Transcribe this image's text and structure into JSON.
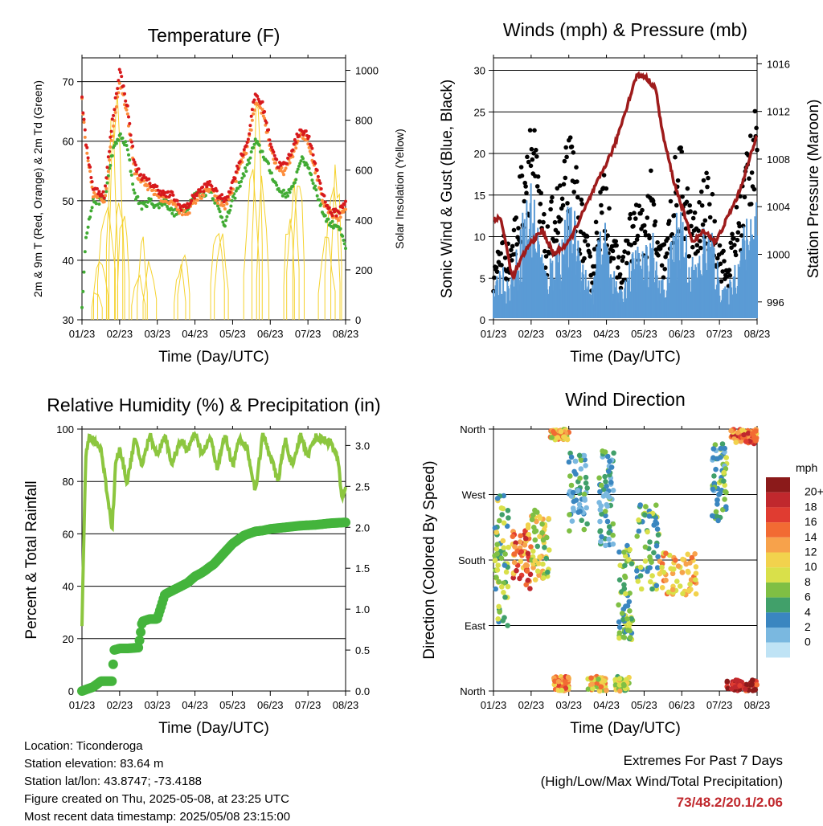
{
  "chart_data": [
    {
      "type": "line",
      "title": "Temperature (F)",
      "xlabel": "Time (Day/UTC)",
      "ylabel": "2m & 9m T (Red, Orange) & 2m Td (Green)",
      "ylabel_right": "Solar Insolation (Yellow)",
      "x_ticks": [
        "01/23",
        "02/23",
        "03/23",
        "04/23",
        "05/23",
        "06/23",
        "07/23",
        "08/23"
      ],
      "ylim": [
        30,
        74
      ],
      "y_ticks": [
        30,
        40,
        50,
        60,
        70
      ],
      "ylim_right": [
        0,
        1050
      ],
      "y_ticks_right": [
        0,
        200,
        400,
        600,
        800,
        1000
      ],
      "grid": "horizontal",
      "series": [
        {
          "name": "2m T",
          "color": "#d7191c",
          "x": [
            1,
            1.1,
            1.3,
            1.6,
            1.8,
            2.0,
            2.2,
            2.4,
            2.6,
            2.8,
            3.0,
            3.2,
            3.4,
            3.6,
            3.8,
            4.0,
            4.2,
            4.4,
            4.6,
            4.8,
            5.0,
            5.2,
            5.4,
            5.6,
            5.8,
            6.0,
            6.2,
            6.4,
            6.6,
            6.8,
            7.0,
            7.2,
            7.4,
            7.6,
            7.8,
            8.0
          ],
          "y": [
            67,
            60,
            52,
            51,
            63,
            72,
            66,
            56,
            54,
            53,
            52,
            51,
            51,
            49,
            49,
            51,
            52,
            53,
            51,
            50,
            53,
            57,
            60,
            68,
            66,
            60,
            56,
            56,
            59,
            62,
            61,
            56,
            51,
            48,
            48,
            50
          ]
        },
        {
          "name": "9m T",
          "color": "#fd8d3c",
          "x": [
            1,
            1.1,
            1.3,
            1.6,
            1.8,
            2.0,
            2.2,
            2.4,
            2.6,
            2.8,
            3.0,
            3.2,
            3.4,
            3.6,
            3.8,
            4.0,
            4.2,
            4.4,
            4.6,
            4.8,
            5.0,
            5.2,
            5.4,
            5.6,
            5.8,
            6.0,
            6.2,
            6.4,
            6.6,
            6.8,
            7.0,
            7.2,
            7.4,
            7.6,
            7.8,
            8.0
          ],
          "y": [
            67,
            59,
            51,
            50,
            61,
            70,
            65,
            55,
            53,
            52,
            51,
            50,
            50,
            48,
            48,
            50,
            51,
            52,
            50,
            49,
            52,
            56,
            59,
            66,
            65,
            59,
            55,
            55,
            58,
            61,
            60,
            55,
            50,
            48,
            47,
            49
          ]
        },
        {
          "name": "2m Td",
          "color": "#41ab34",
          "x": [
            1,
            1.05,
            1.1,
            1.3,
            1.6,
            1.8,
            2.0,
            2.2,
            2.4,
            2.6,
            2.8,
            3.0,
            3.2,
            3.4,
            3.6,
            3.8,
            4.0,
            4.2,
            4.4,
            4.6,
            4.8,
            5.0,
            5.2,
            5.4,
            5.6,
            5.8,
            6.0,
            6.2,
            6.4,
            6.6,
            6.8,
            7.0,
            7.2,
            7.4,
            7.6,
            7.8,
            8.0
          ],
          "y": [
            32,
            38,
            44,
            50,
            50,
            58,
            61,
            59,
            51,
            49,
            50,
            49,
            50,
            48,
            48,
            49,
            51,
            51,
            52,
            49,
            46,
            50,
            53,
            56,
            60,
            58,
            55,
            52,
            51,
            52,
            57,
            56,
            52,
            48,
            46,
            46,
            42
          ]
        },
        {
          "name": "Solar Insolation",
          "color": "#f5d22e",
          "axis": "right",
          "peaks": [
            [
              1.4,
              150
            ],
            [
              1.5,
              300
            ],
            [
              1.65,
              600
            ],
            [
              1.8,
              850
            ],
            [
              1.9,
              950
            ],
            [
              2.0,
              600
            ],
            [
              2.1,
              500
            ],
            [
              2.5,
              200
            ],
            [
              2.6,
              350
            ],
            [
              2.8,
              280
            ],
            [
              3.6,
              250
            ],
            [
              3.7,
              300
            ],
            [
              4.6,
              450
            ],
            [
              4.7,
              400
            ],
            [
              5.5,
              700
            ],
            [
              5.65,
              950
            ],
            [
              5.8,
              600
            ],
            [
              6.5,
              500
            ],
            [
              6.6,
              600
            ],
            [
              6.75,
              700
            ],
            [
              7.5,
              350
            ],
            [
              7.65,
              600
            ],
            [
              7.75,
              700
            ]
          ]
        }
      ]
    },
    {
      "type": "scatter",
      "title": "Winds (mph) & Pressure (mb)",
      "xlabel": "Time (Day/UTC)",
      "ylabel": "Sonic Wind & Gust (Blue, Black)",
      "ylabel_right": "Station Pressure (Maroon)",
      "x_ticks": [
        "01/23",
        "02/23",
        "03/23",
        "04/23",
        "05/23",
        "06/23",
        "07/23",
        "08/23"
      ],
      "ylim": [
        0,
        31.5
      ],
      "y_ticks": [
        0,
        5,
        10,
        15,
        20,
        25,
        30
      ],
      "ylim_right": [
        994.5,
        1016.5
      ],
      "y_ticks_right": [
        996,
        1000,
        1004,
        1008,
        1012,
        1016
      ],
      "grid": "horizontal",
      "series": [
        {
          "name": "Sonic Wind",
          "color": "#5b9bd5",
          "x": [
            1,
            1.2,
            1.4,
            1.6,
            1.8,
            2.0,
            2.2,
            2.4,
            2.6,
            2.8,
            3.0,
            3.2,
            3.4,
            3.6,
            3.8,
            4.0,
            4.2,
            4.4,
            4.6,
            4.8,
            5.0,
            5.2,
            5.4,
            5.6,
            5.8,
            6.0,
            6.2,
            6.4,
            6.6,
            6.8,
            7.0,
            7.2,
            7.4,
            7.6,
            7.8,
            8.0
          ],
          "y": [
            3,
            6,
            4,
            7,
            12,
            15,
            10,
            5,
            8,
            9,
            12,
            11,
            6,
            3,
            9,
            10,
            5,
            3,
            6,
            8,
            7,
            10,
            4,
            5,
            11,
            13,
            7,
            6,
            10,
            9,
            5,
            3,
            6,
            9,
            12,
            15
          ]
        },
        {
          "name": "Gust",
          "color": "#000000",
          "x": [
            1,
            1.2,
            1.4,
            1.6,
            1.8,
            2.0,
            2.2,
            2.4,
            2.6,
            2.8,
            3.0,
            3.2,
            3.4,
            3.6,
            3.8,
            4.0,
            4.2,
            4.4,
            4.6,
            4.8,
            5.0,
            5.2,
            5.4,
            5.6,
            5.8,
            6.0,
            6.2,
            6.4,
            6.6,
            6.8,
            7.0,
            7.2,
            7.4,
            7.6,
            7.8,
            8.0
          ],
          "y": [
            5,
            10,
            8,
            12,
            19,
            24,
            16,
            9,
            14,
            15,
            20,
            17,
            11,
            6,
            14,
            16,
            9,
            6,
            11,
            13,
            12,
            16,
            8,
            9,
            17,
            19,
            13,
            11,
            16,
            14,
            9,
            6,
            11,
            15,
            22,
            29
          ]
        },
        {
          "name": "Station Pressure",
          "color": "#9e1b1b",
          "axis": "right",
          "x": [
            1,
            1.2,
            1.5,
            1.8,
            2.0,
            2.3,
            2.6,
            3.0,
            3.3,
            3.6,
            3.9,
            4.2,
            4.5,
            4.8,
            5.0,
            5.3,
            5.5,
            5.8,
            6.0,
            6.3,
            6.6,
            6.9,
            7.2,
            7.5,
            7.8,
            8.0
          ],
          "y": [
            1003,
            1003,
            998,
            1000,
            1001,
            1002,
            1000,
            1001,
            1003,
            1005,
            1007,
            1009,
            1012,
            1015,
            1015,
            1014,
            1010,
            1006,
            1004,
            1001,
            1002,
            1001,
            1003,
            1005,
            1008,
            1010
          ]
        }
      ]
    },
    {
      "type": "line",
      "title": "Relative Humidity (%) & Precipitation (in)",
      "xlabel": "Time (Day/UTC)",
      "ylabel": "Percent & Total Rainfall",
      "x_ticks": [
        "01/23",
        "02/23",
        "03/23",
        "04/23",
        "05/23",
        "06/23",
        "07/23",
        "08/23"
      ],
      "ylim": [
        0,
        100
      ],
      "y_ticks": [
        0,
        20,
        40,
        60,
        80,
        100
      ],
      "ylim_right": [
        0.0,
        3.2
      ],
      "y_ticks_right": [
        0.0,
        0.5,
        1.0,
        1.5,
        2.0,
        2.5,
        3.0
      ],
      "grid": "horizontal",
      "series": [
        {
          "name": "Relative Humidity",
          "color": "#8cc63f",
          "x": [
            1,
            1.05,
            1.1,
            1.2,
            1.5,
            1.8,
            1.9,
            2.0,
            2.2,
            2.4,
            2.6,
            2.8,
            3.0,
            3.2,
            3.4,
            3.6,
            3.8,
            4.0,
            4.2,
            4.4,
            4.6,
            4.8,
            5.0,
            5.2,
            5.4,
            5.6,
            5.8,
            6.0,
            6.2,
            6.4,
            6.6,
            6.8,
            7.0,
            7.2,
            7.4,
            7.6,
            7.8,
            7.9,
            8.0
          ],
          "y": [
            26,
            60,
            90,
            97,
            93,
            62,
            88,
            92,
            80,
            96,
            86,
            98,
            90,
            98,
            86,
            96,
            92,
            98,
            90,
            97,
            85,
            98,
            86,
            97,
            92,
            76,
            98,
            90,
            80,
            96,
            85,
            98,
            90,
            97,
            96,
            95,
            88,
            74,
            78
          ]
        },
        {
          "name": "Total Precipitation",
          "color": "#44b43c",
          "axis": "right",
          "x": [
            1,
            1.3,
            1.5,
            1.8,
            1.85,
            2.0,
            2.2,
            2.5,
            2.6,
            2.8,
            3.0,
            3.2,
            3.5,
            3.8,
            4.0,
            4.2,
            4.5,
            4.8,
            5.0,
            5.3,
            5.6,
            5.8,
            6.0,
            6.4,
            6.8,
            7.2,
            7.6,
            8.0
          ],
          "y": [
            0.0,
            0.05,
            0.12,
            0.12,
            0.5,
            0.52,
            0.52,
            0.53,
            0.85,
            0.88,
            0.88,
            1.18,
            1.25,
            1.32,
            1.4,
            1.45,
            1.55,
            1.7,
            1.8,
            1.9,
            1.95,
            1.96,
            1.98,
            2.0,
            2.02,
            2.03,
            2.05,
            2.06
          ]
        }
      ]
    },
    {
      "type": "scatter",
      "title": "Wind Direction",
      "xlabel": "Time (Day/UTC)",
      "ylabel": "Direction (Colored By Speed)",
      "x_ticks": [
        "01/23",
        "02/23",
        "03/23",
        "04/23",
        "05/23",
        "06/23",
        "07/23",
        "08/23"
      ],
      "y_ticks": [
        "North",
        "East",
        "South",
        "West",
        "North"
      ],
      "ylim": [
        0,
        360
      ],
      "legend": {
        "title": "mph",
        "placement": "right",
        "levels": [
          "20+",
          "18",
          "16",
          "14",
          "12",
          "10",
          "8",
          "6",
          "4",
          "2",
          "0"
        ],
        "colors": [
          "#8b1a1a",
          "#c0282d",
          "#e03c31",
          "#f26b33",
          "#f7a24b",
          "#f2d24d",
          "#d9e04a",
          "#7fbf44",
          "#41a06a",
          "#3a86c0",
          "#7ab8e0",
          "#bfe3f5"
        ]
      },
      "clusters": [
        {
          "x": [
            1.0,
            1.4
          ],
          "dir": [
            90,
            270
          ],
          "speed": 6
        },
        {
          "x": [
            1.5,
            2.0
          ],
          "dir": [
            140,
            230
          ],
          "speed": 14
        },
        {
          "x": [
            2.0,
            2.5
          ],
          "dir": [
            150,
            250
          ],
          "speed": 8
        },
        {
          "x": [
            2.6,
            3.0
          ],
          "dir": [
            0,
            20
          ],
          "speed": 12
        },
        {
          "x": [
            2.5,
            3.0
          ],
          "dir": [
            345,
            360
          ],
          "speed": 10
        },
        {
          "x": [
            3.0,
            3.5
          ],
          "dir": [
            220,
            330
          ],
          "speed": 2
        },
        {
          "x": [
            3.5,
            4.0
          ],
          "dir": [
            0,
            20
          ],
          "speed": 10
        },
        {
          "x": [
            3.8,
            4.2
          ],
          "dir": [
            200,
            330
          ],
          "speed": 2
        },
        {
          "x": [
            4.2,
            4.6
          ],
          "dir": [
            0,
            20
          ],
          "speed": 8
        },
        {
          "x": [
            4.3,
            4.7
          ],
          "dir": [
            70,
            200
          ],
          "speed": 5
        },
        {
          "x": [
            4.8,
            5.4
          ],
          "dir": [
            140,
            260
          ],
          "speed": 5
        },
        {
          "x": [
            5.4,
            6.4
          ],
          "dir": [
            130,
            190
          ],
          "speed": 11
        },
        {
          "x": [
            6.8,
            7.2
          ],
          "dir": [
            230,
            340
          ],
          "speed": 4
        },
        {
          "x": [
            7.2,
            8.0
          ],
          "dir": [
            0,
            15
          ],
          "speed": 18
        },
        {
          "x": [
            7.3,
            8.0
          ],
          "dir": [
            340,
            360
          ],
          "speed": 14
        }
      ]
    }
  ],
  "station": {
    "location": "Location: Ticonderoga",
    "elevation": "Station elevation: 83.64 m",
    "latlon": "Station lat/lon: 43.8747; -73.4188",
    "created": "Figure created on Thu, 2025-05-08, at 23:25 UTC",
    "timestamp": "Most recent data timestamp: 2025/05/08 23:15:00"
  },
  "extremes": {
    "heading": "Extremes For Past 7 Days",
    "subheading": "(High/Low/Max Wind/Total Precipitation)",
    "value": "73/48.2/20.1/2.06"
  }
}
